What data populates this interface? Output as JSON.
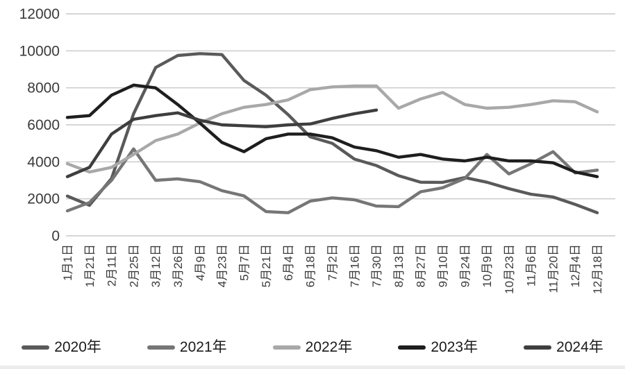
{
  "chart_data": {
    "type": "line",
    "title": "",
    "xlabel": "",
    "ylabel": "",
    "ylim": [
      0,
      12000
    ],
    "y_tick_step": 2000,
    "y_tick_labels": [
      "0",
      "2000",
      "4000",
      "6000",
      "8000",
      "10000",
      "12000"
    ],
    "grid": "horizontal",
    "legend_position": "bottom",
    "categories": [
      "1月1日",
      "1月21日",
      "2月11日",
      "2月25日",
      "3月12日",
      "3月26日",
      "4月9日",
      "4月23日",
      "5月7日",
      "5月21日",
      "6月4日",
      "6月18日",
      "7月2日",
      "7月16日",
      "7月30日",
      "8月13日",
      "8月27日",
      "9月10日",
      "9月24日",
      "10月9日",
      "10月23日",
      "11月6日",
      "11月20日",
      "12月4日",
      "12月18日"
    ],
    "series": [
      {
        "name": "2020年",
        "color": "#5a5a5a",
        "values": [
          2150,
          1650,
          3100,
          6600,
          9100,
          9750,
          9850,
          9800,
          8400,
          7600,
          6550,
          5350,
          5000,
          4150,
          3800,
          3250,
          2900,
          2890,
          3150,
          2900,
          2550,
          2250,
          2100,
          1700,
          1250
        ]
      },
      {
        "name": "2021年",
        "color": "#767676",
        "values": [
          1350,
          1800,
          3000,
          4700,
          3000,
          3080,
          2930,
          2440,
          2160,
          1310,
          1250,
          1880,
          2050,
          1950,
          1610,
          1580,
          2380,
          2600,
          3100,
          4400,
          3350,
          3900,
          4550,
          3400,
          3550
        ]
      },
      {
        "name": "2022年",
        "color": "#a8a8a8",
        "values": [
          3900,
          3450,
          3700,
          4400,
          5150,
          5500,
          6100,
          6600,
          6950,
          7100,
          7350,
          7900,
          8050,
          8100,
          8100,
          6900,
          7400,
          7750,
          7100,
          6900,
          6950,
          7100,
          7300,
          7250,
          6700
        ]
      },
      {
        "name": "2023年",
        "color": "#1e1e1e",
        "values": [
          6400,
          6500,
          7600,
          8150,
          8000,
          7100,
          6100,
          5050,
          4550,
          5250,
          5500,
          5500,
          5300,
          4800,
          4600,
          4250,
          4400,
          4150,
          4050,
          4250,
          4050,
          4050,
          3950,
          3450,
          3200
        ]
      },
      {
        "name": "2024年",
        "color": "#3e3e3e",
        "values": [
          3200,
          3700,
          5500,
          6300,
          6500,
          6650,
          6250,
          6000,
          5950,
          5900,
          6000,
          6050,
          6350,
          6600,
          6800
        ]
      }
    ]
  }
}
